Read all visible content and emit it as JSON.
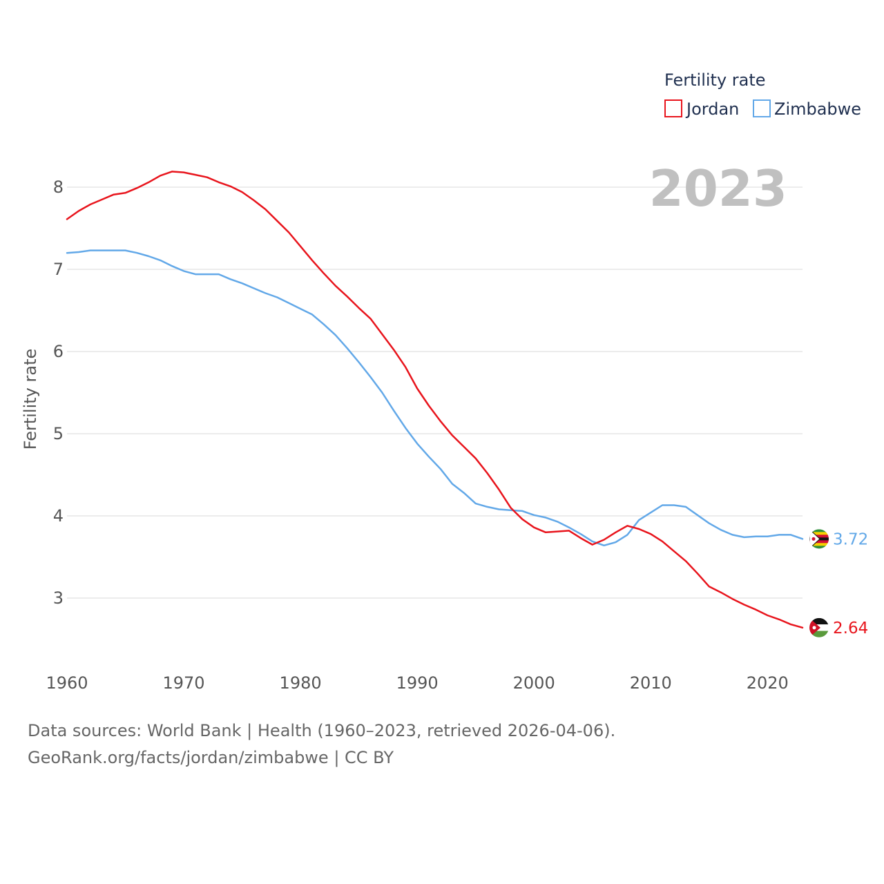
{
  "chart_data": {
    "type": "line",
    "ylabel": "Fertility rate",
    "ylim": [
      2.4,
      8.4
    ],
    "xlim": [
      1960,
      2023
    ],
    "yticks": [
      3,
      4,
      5,
      6,
      7,
      8
    ],
    "xticks": [
      1960,
      1970,
      1980,
      1990,
      2000,
      2010,
      2020
    ],
    "grid": true,
    "legend": {
      "title": "Fertility rate",
      "placement": "top-right"
    },
    "year_label": "2023",
    "x": [
      1960,
      1961,
      1962,
      1963,
      1964,
      1965,
      1966,
      1967,
      1968,
      1969,
      1970,
      1971,
      1972,
      1973,
      1974,
      1975,
      1976,
      1977,
      1978,
      1979,
      1980,
      1981,
      1982,
      1983,
      1984,
      1985,
      1986,
      1987,
      1988,
      1989,
      1990,
      1991,
      1992,
      1993,
      1994,
      1995,
      1996,
      1997,
      1998,
      1999,
      2000,
      2001,
      2002,
      2003,
      2004,
      2005,
      2006,
      2007,
      2008,
      2009,
      2010,
      2011,
      2012,
      2013,
      2014,
      2015,
      2016,
      2017,
      2018,
      2019,
      2020,
      2021,
      2022,
      2023
    ],
    "series": [
      {
        "name": "Jordan",
        "color": "#e8141c",
        "end_label": "2.64",
        "flag": "jordan-flag",
        "values": [
          7.61,
          7.71,
          7.79,
          7.85,
          7.91,
          7.93,
          7.99,
          8.06,
          8.14,
          8.19,
          8.18,
          8.15,
          8.12,
          8.06,
          8.01,
          7.94,
          7.84,
          7.73,
          7.59,
          7.45,
          7.28,
          7.11,
          6.95,
          6.8,
          6.67,
          6.53,
          6.4,
          6.21,
          6.02,
          5.81,
          5.55,
          5.34,
          5.15,
          4.98,
          4.84,
          4.7,
          4.52,
          4.32,
          4.1,
          3.96,
          3.86,
          3.8,
          3.81,
          3.82,
          3.73,
          3.65,
          3.71,
          3.8,
          3.88,
          3.84,
          3.78,
          3.69,
          3.57,
          3.45,
          3.3,
          3.14,
          3.07,
          2.99,
          2.92,
          2.86,
          2.79,
          2.74,
          2.68,
          2.64
        ]
      },
      {
        "name": "Zimbabwe",
        "color": "#62a8e8",
        "end_label": "3.72",
        "flag": "zimbabwe-flag",
        "values": [
          7.2,
          7.21,
          7.23,
          7.23,
          7.23,
          7.23,
          7.2,
          7.16,
          7.11,
          7.04,
          6.98,
          6.94,
          6.94,
          6.94,
          6.88,
          6.83,
          6.77,
          6.71,
          6.66,
          6.59,
          6.52,
          6.45,
          6.33,
          6.2,
          6.04,
          5.87,
          5.69,
          5.5,
          5.28,
          5.07,
          4.88,
          4.72,
          4.57,
          4.39,
          4.28,
          4.15,
          4.11,
          4.08,
          4.07,
          4.06,
          4.01,
          3.98,
          3.93,
          3.86,
          3.78,
          3.69,
          3.64,
          3.68,
          3.77,
          3.95,
          4.04,
          4.13,
          4.13,
          4.11,
          4.01,
          3.91,
          3.83,
          3.77,
          3.74,
          3.75,
          3.75,
          3.77,
          3.77,
          3.72
        ]
      }
    ]
  },
  "footer": {
    "line1": "Data sources: World Bank | Health (1960–2023, retrieved 2026-04-06).",
    "line2": "GeoRank.org/facts/jordan/zimbabwe | CC BY"
  }
}
